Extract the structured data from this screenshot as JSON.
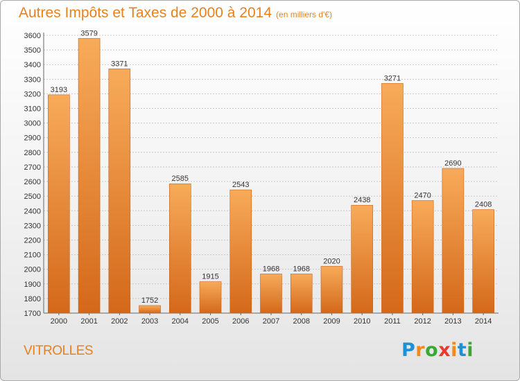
{
  "header": {
    "title": "Autres Impôts et Taxes de 2000 à 2014",
    "unit": "(en milliers d'€)"
  },
  "location": "VITROLLES",
  "logo": {
    "text": "Proxiti",
    "letters": [
      {
        "char": "P",
        "color": "#1e90d8"
      },
      {
        "char": "r",
        "color": "#f08a1c"
      },
      {
        "char": "o",
        "color": "#39a935"
      },
      {
        "char": "x",
        "color": "#e83a2e"
      },
      {
        "char": "i",
        "color": "#f08a1c"
      },
      {
        "char": "t",
        "color": "#1e90d8"
      },
      {
        "char": "i",
        "color": "#39a935"
      }
    ]
  },
  "colors": {
    "title": "#e8801e",
    "bar_light": "#f7ab5a",
    "bar_dark": "#d4681a"
  },
  "chart_data": {
    "type": "bar",
    "title": "Autres Impôts et Taxes de 2000 à 2014",
    "unit": "(en milliers d'€)",
    "xlabel": "",
    "ylabel": "",
    "categories": [
      "2000",
      "2001",
      "2002",
      "2003",
      "2004",
      "2005",
      "2006",
      "2007",
      "2008",
      "2009",
      "2010",
      "2011",
      "2012",
      "2013",
      "2014"
    ],
    "values": [
      3193,
      3579,
      3371,
      1752,
      2585,
      1915,
      2543,
      1968,
      1968,
      2020,
      2438,
      3271,
      2470,
      2690,
      2408
    ],
    "ylim": [
      1700,
      3600
    ],
    "yticks": [
      1700,
      1800,
      1900,
      2000,
      2100,
      2200,
      2300,
      2400,
      2500,
      2600,
      2700,
      2800,
      2900,
      3000,
      3100,
      3200,
      3300,
      3400,
      3500,
      3600
    ],
    "grid": true,
    "legend": "none"
  }
}
